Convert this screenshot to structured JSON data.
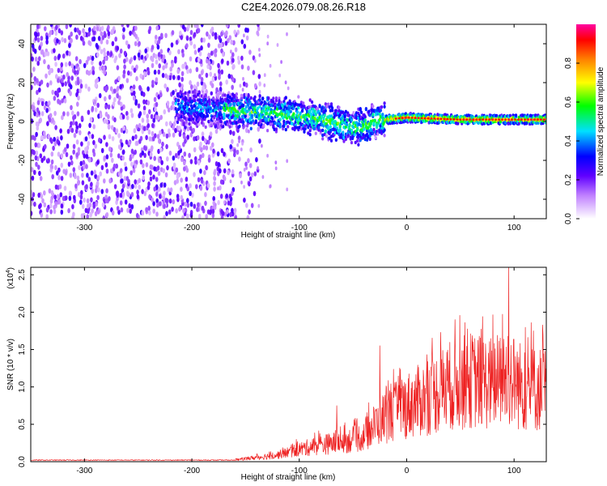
{
  "title": "C2E4.2026.079.08.26.R18",
  "chart_data": [
    {
      "type": "heatmap",
      "name": "spectrogram",
      "xlabel": "Height of straight line (km)",
      "ylabel": "Frequency (Hz)",
      "xlim": [
        -350,
        130
      ],
      "ylim": [
        -50,
        50
      ],
      "x_ticks": [
        -300,
        -200,
        -100,
        0,
        100
      ],
      "y_ticks": [
        -40,
        -20,
        0,
        20,
        40
      ],
      "x_tick_labels": [
        "-300",
        "-200",
        "-100",
        "0",
        "100"
      ],
      "y_tick_labels": [
        "-40",
        "-20",
        "0",
        "20",
        "40"
      ],
      "noise_region_x": [
        -350,
        -160
      ],
      "signal_track": [
        {
          "x": -210,
          "y": 8
        },
        {
          "x": -180,
          "y": 6
        },
        {
          "x": -150,
          "y": 5
        },
        {
          "x": -120,
          "y": 4
        },
        {
          "x": -100,
          "y": 3
        },
        {
          "x": -80,
          "y": 1
        },
        {
          "x": -60,
          "y": -2
        },
        {
          "x": -40,
          "y": -3
        },
        {
          "x": -30,
          "y": 0
        },
        {
          "x": -20,
          "y": 1
        },
        {
          "x": 0,
          "y": 2
        },
        {
          "x": 50,
          "y": 1
        },
        {
          "x": 100,
          "y": 1
        },
        {
          "x": 130,
          "y": 1
        }
      ],
      "colorbar": {
        "label": "Normalized spectral amplitude",
        "range": [
          0,
          1
        ],
        "ticks": [
          0.0,
          0.2,
          0.4,
          0.6,
          0.8
        ],
        "tick_labels": [
          "0.0",
          "0.2",
          "0.4",
          "0.6",
          "0.8"
        ],
        "colors": [
          "#ffffff",
          "#8000ff",
          "#0000ff",
          "#00e0ff",
          "#00ff00",
          "#ffff00",
          "#ff8000",
          "#ff0000",
          "#ff00a0"
        ]
      }
    },
    {
      "type": "line",
      "name": "snr",
      "xlabel": "Height of straight line (km)",
      "ylabel": "SNR (10 * v/v)",
      "y_scale_label": "(x10",
      "y_scale_exp": "4",
      "y_scale_close": ")",
      "xlim": [
        -350,
        130
      ],
      "ylim": [
        0,
        2.6
      ],
      "x_ticks": [
        -300,
        -200,
        -100,
        0,
        100
      ],
      "y_ticks": [
        0.0,
        0.5,
        1.0,
        1.5,
        2.0,
        2.5
      ],
      "x_tick_labels": [
        "-300",
        "-200",
        "-100",
        "0",
        "100"
      ],
      "y_tick_labels": [
        "0.0",
        "0.5",
        "1.0",
        "1.5",
        "2.0",
        "2.5"
      ],
      "color": "#ee2222",
      "envelope": [
        {
          "x": -350,
          "y": 0.02
        },
        {
          "x": -200,
          "y": 0.02
        },
        {
          "x": -160,
          "y": 0.03
        },
        {
          "x": -120,
          "y": 0.12
        },
        {
          "x": -100,
          "y": 0.22
        },
        {
          "x": -80,
          "y": 0.3
        },
        {
          "x": -60,
          "y": 0.35
        },
        {
          "x": -40,
          "y": 0.45
        },
        {
          "x": -30,
          "y": 0.65
        },
        {
          "x": -20,
          "y": 0.8
        },
        {
          "x": 0,
          "y": 1.0
        },
        {
          "x": 20,
          "y": 1.15
        },
        {
          "x": 40,
          "y": 1.35
        },
        {
          "x": 60,
          "y": 1.45
        },
        {
          "x": 80,
          "y": 1.4
        },
        {
          "x": 95,
          "y": 1.5
        },
        {
          "x": 110,
          "y": 1.3
        },
        {
          "x": 130,
          "y": 1.3
        }
      ],
      "spikes": [
        {
          "x": -65,
          "y": 0.75
        },
        {
          "x": -25,
          "y": 1.55
        },
        {
          "x": 45,
          "y": 1.9
        },
        {
          "x": 95,
          "y": 2.6
        },
        {
          "x": 118,
          "y": 1.75
        }
      ]
    }
  ]
}
